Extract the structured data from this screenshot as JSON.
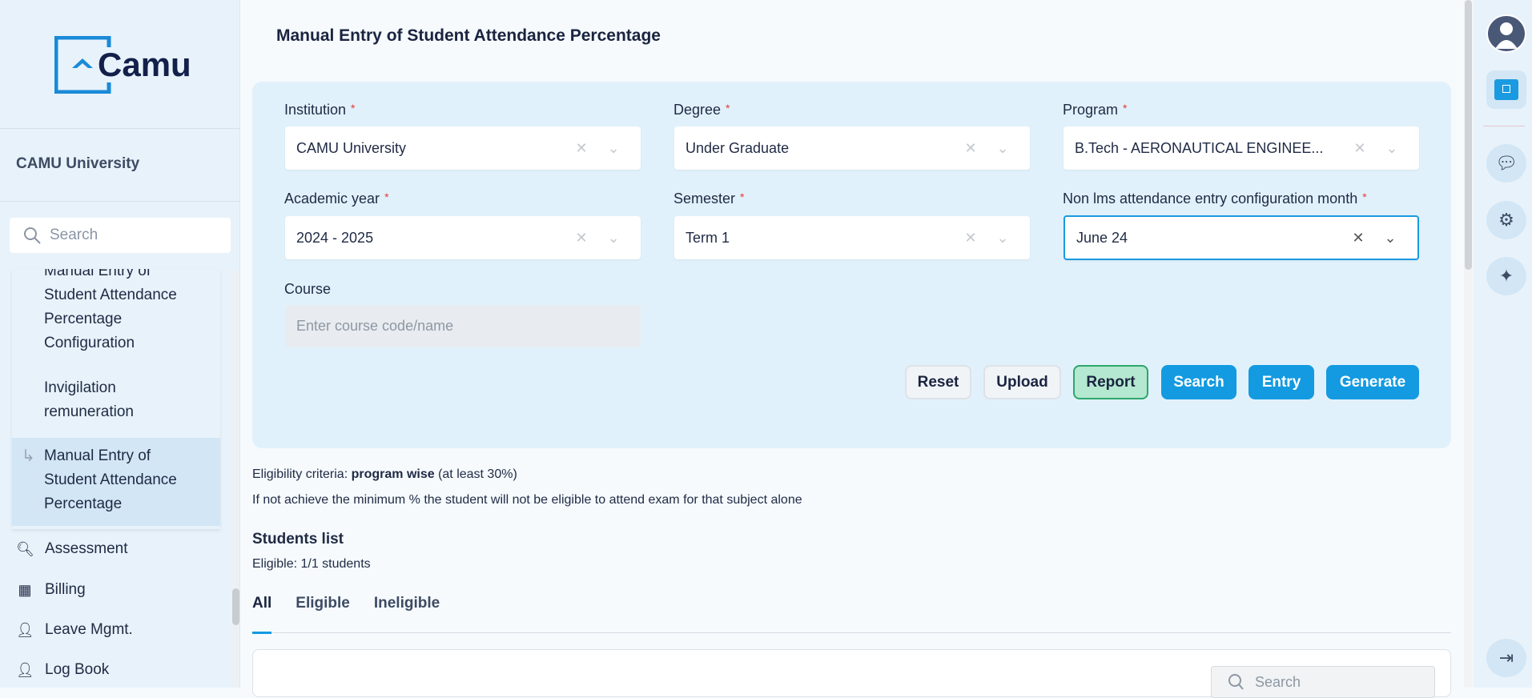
{
  "sidebar": {
    "logo_text": "Camu",
    "institution": "CAMU University",
    "search_placeholder": "Search",
    "menu_items": [
      {
        "label": "Manual Entry of Student Attendance Percentage Configuration"
      },
      {
        "label": "Invigilation remuneration"
      },
      {
        "label": "Manual Entry of Student Attendance Percentage",
        "active": true
      }
    ],
    "nav": [
      {
        "label": "Assessment",
        "icon": "search-icon"
      },
      {
        "label": "Billing",
        "icon": "billing-icon"
      },
      {
        "label": "Leave Mgmt.",
        "icon": "user-clock-icon"
      },
      {
        "label": "Log Book",
        "icon": "user-clock-icon"
      }
    ]
  },
  "page": {
    "title": "Manual Entry of Student Attendance Percentage"
  },
  "form": {
    "institution": {
      "label": "Institution",
      "value": "CAMU University"
    },
    "degree": {
      "label": "Degree",
      "value": "Under Graduate"
    },
    "program": {
      "label": "Program",
      "value": "B.Tech - AERONAUTICAL ENGINEE..."
    },
    "academic_year": {
      "label": "Academic year",
      "value": "2024 - 2025"
    },
    "semester": {
      "label": "Semester",
      "value": "Term 1"
    },
    "month": {
      "label": "Non lms attendance entry configuration month",
      "value": "June 24"
    },
    "course": {
      "label": "Course",
      "placeholder": "Enter course code/name"
    },
    "required_mark": "*",
    "buttons": {
      "reset": "Reset",
      "upload": "Upload",
      "report": "Report",
      "search": "Search",
      "entry": "Entry",
      "generate": "Generate"
    }
  },
  "eligibility": {
    "prefix": "Eligibility criteria: ",
    "criteria": "program wise",
    "suffix": " (at least 30%)",
    "note": "If not achieve the minimum % the student will not be eligible to attend exam for that subject alone"
  },
  "students": {
    "title": "Students list",
    "count": "Eligible: 1/1 students",
    "tabs": [
      "All",
      "Eligible",
      "Ineligible"
    ],
    "active_tab": "All",
    "search_placeholder": "Search"
  },
  "colors": {
    "accent": "#139ae1",
    "report": "#b5e8d0",
    "sidebar": "#e8f2fa",
    "panel": "#e1f1fb"
  }
}
